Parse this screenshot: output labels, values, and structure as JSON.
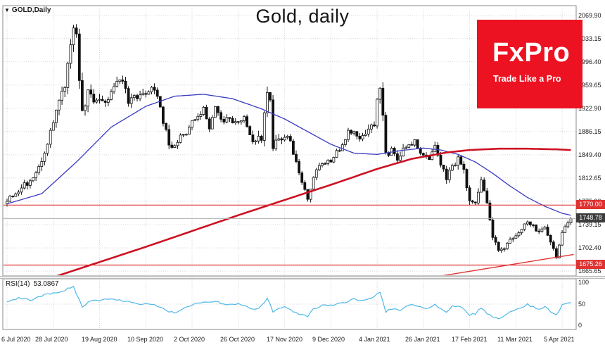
{
  "window": {
    "symbol_marker": "▼",
    "symbol_label": "GOLD,Daily",
    "title": "Gold, daily"
  },
  "logo": {
    "name": "FxPro",
    "tagline": "Trade Like a Pro",
    "bg_color": "#ec1222"
  },
  "chart_data": {
    "type": "candlestick",
    "title": "Gold, daily",
    "symbol": "GOLD,Daily",
    "x_ticks": {
      "indices": [
        0,
        16,
        32,
        48,
        64,
        80,
        96,
        112,
        128,
        144,
        160,
        176,
        192
      ],
      "labels": [
        "6 Jul 2020",
        "28 Jul 2020",
        "19 Aug 2020",
        "10 Sep 2020",
        "2 Oct 2020",
        "26 Oct 2020",
        "17 Nov 2020",
        "9 Dec 2020",
        "4 Jan 2021",
        "26 Jan 2021",
        "17 Feb 2021",
        "11 Mar 2021",
        "5 Apr 2021"
      ]
    },
    "price_axis": {
      "min": 1658,
      "max": 2085,
      "tick_labels": [
        "2069.90",
        "2033.15",
        "1996.40",
        "1959.65",
        "1922.90",
        "1886.15",
        "1849.40",
        "1812.65",
        "1775.90",
        "1739.15",
        "1702.40",
        "1665.65"
      ]
    },
    "candles": {
      "count": 196,
      "close_anchors": [
        [
          0,
          1776
        ],
        [
          3,
          1790
        ],
        [
          6,
          1803
        ],
        [
          9,
          1810
        ],
        [
          12,
          1843
        ],
        [
          14,
          1871
        ],
        [
          16,
          1902
        ],
        [
          18,
          1941
        ],
        [
          20,
          1955
        ],
        [
          22,
          2021
        ],
        [
          23,
          2052
        ],
        [
          24,
          2031
        ],
        [
          26,
          1911
        ],
        [
          27,
          1932
        ],
        [
          28,
          1947
        ],
        [
          30,
          1928
        ],
        [
          32,
          1940
        ],
        [
          34,
          1928
        ],
        [
          36,
          1955
        ],
        [
          38,
          1970
        ],
        [
          40,
          1968
        ],
        [
          42,
          1930
        ],
        [
          44,
          1945
        ],
        [
          46,
          1940
        ],
        [
          48,
          1946
        ],
        [
          50,
          1957
        ],
        [
          52,
          1940
        ],
        [
          54,
          1900
        ],
        [
          56,
          1868
        ],
        [
          58,
          1860
        ],
        [
          60,
          1880
        ],
        [
          62,
          1886
        ],
        [
          64,
          1900
        ],
        [
          66,
          1913
        ],
        [
          68,
          1921
        ],
        [
          70,
          1893
        ],
        [
          72,
          1926
        ],
        [
          74,
          1902
        ],
        [
          76,
          1908
        ],
        [
          78,
          1902
        ],
        [
          80,
          1902
        ],
        [
          82,
          1908
        ],
        [
          84,
          1881
        ],
        [
          86,
          1867
        ],
        [
          88,
          1878
        ],
        [
          90,
          1951
        ],
        [
          91,
          1940
        ],
        [
          92,
          1863
        ],
        [
          94,
          1877
        ],
        [
          96,
          1880
        ],
        [
          98,
          1872
        ],
        [
          100,
          1837
        ],
        [
          102,
          1804
        ],
        [
          104,
          1777
        ],
        [
          106,
          1815
        ],
        [
          108,
          1830
        ],
        [
          110,
          1838
        ],
        [
          112,
          1840
        ],
        [
          114,
          1855
        ],
        [
          116,
          1862
        ],
        [
          118,
          1885
        ],
        [
          120,
          1885
        ],
        [
          122,
          1876
        ],
        [
          124,
          1880
        ],
        [
          126,
          1893
        ],
        [
          127,
          1898
        ],
        [
          128,
          1943
        ],
        [
          129,
          1949
        ],
        [
          130,
          1908
        ],
        [
          131,
          1849
        ],
        [
          133,
          1855
        ],
        [
          135,
          1839
        ],
        [
          137,
          1855
        ],
        [
          139,
          1866
        ],
        [
          141,
          1870
        ],
        [
          143,
          1855
        ],
        [
          144,
          1851
        ],
        [
          146,
          1843
        ],
        [
          148,
          1863
        ],
        [
          150,
          1833
        ],
        [
          152,
          1813
        ],
        [
          154,
          1831
        ],
        [
          156,
          1843
        ],
        [
          158,
          1824
        ],
        [
          160,
          1776
        ],
        [
          162,
          1777
        ],
        [
          164,
          1806
        ],
        [
          166,
          1770
        ],
        [
          168,
          1723
        ],
        [
          170,
          1698
        ],
        [
          172,
          1701
        ],
        [
          174,
          1717
        ],
        [
          176,
          1722
        ],
        [
          178,
          1731
        ],
        [
          180,
          1746
        ],
        [
          182,
          1737
        ],
        [
          184,
          1727
        ],
        [
          186,
          1733
        ],
        [
          188,
          1712
        ],
        [
          190,
          1686
        ],
        [
          192,
          1729
        ],
        [
          194,
          1744
        ],
        [
          195,
          1749
        ]
      ],
      "vol_anchors": [
        [
          0,
          7
        ],
        [
          14,
          12
        ],
        [
          22,
          16
        ],
        [
          26,
          22
        ],
        [
          30,
          14
        ],
        [
          40,
          11
        ],
        [
          56,
          11
        ],
        [
          64,
          8
        ],
        [
          80,
          8
        ],
        [
          90,
          16
        ],
        [
          92,
          14
        ],
        [
          100,
          9
        ],
        [
          108,
          7
        ],
        [
          120,
          7
        ],
        [
          128,
          13
        ],
        [
          131,
          14
        ],
        [
          140,
          8
        ],
        [
          150,
          9
        ],
        [
          160,
          11
        ],
        [
          166,
          9
        ],
        [
          172,
          7
        ],
        [
          180,
          6
        ],
        [
          188,
          7
        ],
        [
          195,
          7
        ]
      ]
    },
    "overlays": {
      "ma_fast": {
        "name": "moving-average-fast",
        "color": "#3b3bc4",
        "width": 1.3,
        "anchors": [
          [
            0,
            1772
          ],
          [
            12,
            1788
          ],
          [
            24,
            1838
          ],
          [
            36,
            1893
          ],
          [
            48,
            1926
          ],
          [
            58,
            1942
          ],
          [
            68,
            1945
          ],
          [
            78,
            1938
          ],
          [
            88,
            1922
          ],
          [
            96,
            1906
          ],
          [
            104,
            1886
          ],
          [
            112,
            1866
          ],
          [
            120,
            1852
          ],
          [
            128,
            1850
          ],
          [
            136,
            1856
          ],
          [
            144,
            1860
          ],
          [
            150,
            1857
          ],
          [
            156,
            1850
          ],
          [
            162,
            1838
          ],
          [
            168,
            1820
          ],
          [
            174,
            1800
          ],
          [
            180,
            1782
          ],
          [
            186,
            1768
          ],
          [
            192,
            1757
          ],
          [
            195,
            1754
          ]
        ]
      },
      "ma_slow": {
        "name": "moving-average-slow",
        "color": "#cc1122",
        "width": 2.6,
        "anchors": [
          [
            0,
            1632
          ],
          [
            16,
            1656
          ],
          [
            32,
            1680
          ],
          [
            48,
            1704
          ],
          [
            64,
            1729
          ],
          [
            80,
            1754
          ],
          [
            96,
            1778
          ],
          [
            112,
            1802
          ],
          [
            128,
            1827
          ],
          [
            140,
            1843
          ],
          [
            152,
            1853
          ],
          [
            160,
            1857
          ],
          [
            170,
            1859
          ],
          [
            180,
            1859
          ],
          [
            190,
            1858
          ],
          [
            195,
            1857
          ]
        ]
      },
      "hlines": [
        {
          "price": 1770.0,
          "label": "1770.00"
        },
        {
          "price": 1675.26,
          "label": "1675.26"
        }
      ],
      "trendline": {
        "from": [
          146,
          1655
        ],
        "to": [
          196,
          1692
        ]
      },
      "last_price": {
        "price": 1748.78,
        "label": "1748.78"
      }
    },
    "rsi_pane": {
      "label": "RSI(14)",
      "value": "53.0867",
      "color": "#4fb8e8",
      "range": [
        0,
        100
      ],
      "axis_labels": [
        100,
        50,
        0
      ],
      "mid_level": 50,
      "anchors": [
        [
          0,
          55
        ],
        [
          4,
          63
        ],
        [
          8,
          58
        ],
        [
          12,
          68
        ],
        [
          16,
          73
        ],
        [
          20,
          79
        ],
        [
          23,
          87
        ],
        [
          26,
          44
        ],
        [
          28,
          55
        ],
        [
          32,
          58
        ],
        [
          36,
          61
        ],
        [
          40,
          57
        ],
        [
          44,
          52
        ],
        [
          48,
          50
        ],
        [
          52,
          47
        ],
        [
          54,
          40
        ],
        [
          56,
          35
        ],
        [
          58,
          32
        ],
        [
          60,
          38
        ],
        [
          64,
          48
        ],
        [
          68,
          55
        ],
        [
          72,
          56
        ],
        [
          76,
          47
        ],
        [
          80,
          50
        ],
        [
          84,
          41
        ],
        [
          86,
          38
        ],
        [
          88,
          48
        ],
        [
          90,
          62
        ],
        [
          92,
          35
        ],
        [
          96,
          43
        ],
        [
          100,
          32
        ],
        [
          102,
          28
        ],
        [
          104,
          25
        ],
        [
          106,
          41
        ],
        [
          110,
          48
        ],
        [
          112,
          47
        ],
        [
          116,
          52
        ],
        [
          120,
          60
        ],
        [
          124,
          57
        ],
        [
          126,
          62
        ],
        [
          128,
          72
        ],
        [
          129,
          74
        ],
        [
          131,
          34
        ],
        [
          133,
          40
        ],
        [
          136,
          37
        ],
        [
          140,
          50
        ],
        [
          144,
          44
        ],
        [
          146,
          41
        ],
        [
          148,
          50
        ],
        [
          150,
          39
        ],
        [
          152,
          33
        ],
        [
          154,
          45
        ],
        [
          156,
          46
        ],
        [
          158,
          40
        ],
        [
          160,
          27
        ],
        [
          162,
          30
        ],
        [
          164,
          42
        ],
        [
          166,
          31
        ],
        [
          168,
          24
        ],
        [
          170,
          21
        ],
        [
          172,
          25
        ],
        [
          174,
          33
        ],
        [
          176,
          38
        ],
        [
          178,
          43
        ],
        [
          180,
          49
        ],
        [
          182,
          44
        ],
        [
          184,
          40
        ],
        [
          186,
          45
        ],
        [
          188,
          35
        ],
        [
          190,
          27
        ],
        [
          192,
          47
        ],
        [
          194,
          52
        ],
        [
          195,
          53
        ]
      ]
    },
    "colors": {
      "grid": "#d9d9d9",
      "candle": "#111111",
      "candle_up_fill": "#ffffff",
      "level": "#e03232",
      "last_price_line": "#b0b0b0",
      "border": "#8a8a8a"
    }
  }
}
